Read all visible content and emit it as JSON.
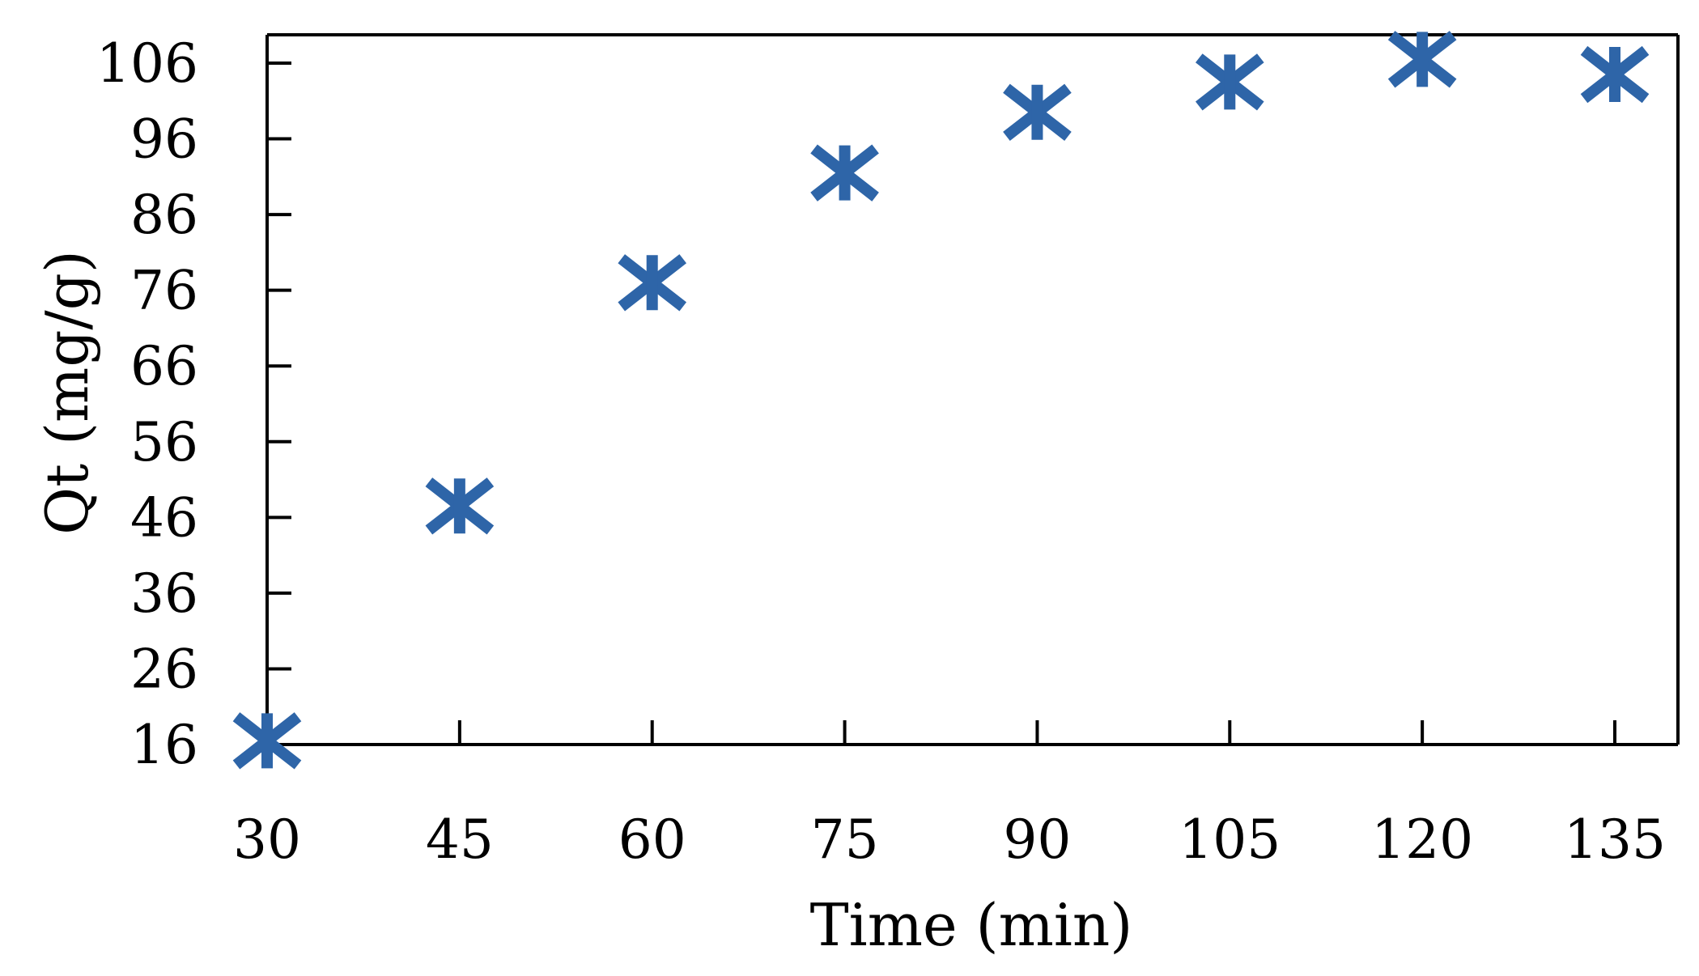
{
  "chart_data": {
    "type": "scatter",
    "title": "",
    "xlabel": "Time (min)",
    "ylabel": "Qt (mg/g)",
    "x": [
      30,
      45,
      60,
      75,
      90,
      105,
      120,
      135
    ],
    "series": [
      {
        "values": [
          16.5,
          47.5,
          77,
          91.5,
          99.5,
          103.5,
          106.5,
          104.5
        ],
        "color": "#2e65a8",
        "marker": "asterisk"
      }
    ],
    "xticks": [
      "30",
      "45",
      "60",
      "75",
      "90",
      "105",
      "120",
      "135"
    ],
    "yticks": [
      "16",
      "26",
      "36",
      "46",
      "56",
      "66",
      "76",
      "86",
      "96",
      "106"
    ],
    "xlim": [
      30,
      135
    ],
    "ylim": [
      16,
      106
    ],
    "grid": false,
    "legend": "none"
  }
}
